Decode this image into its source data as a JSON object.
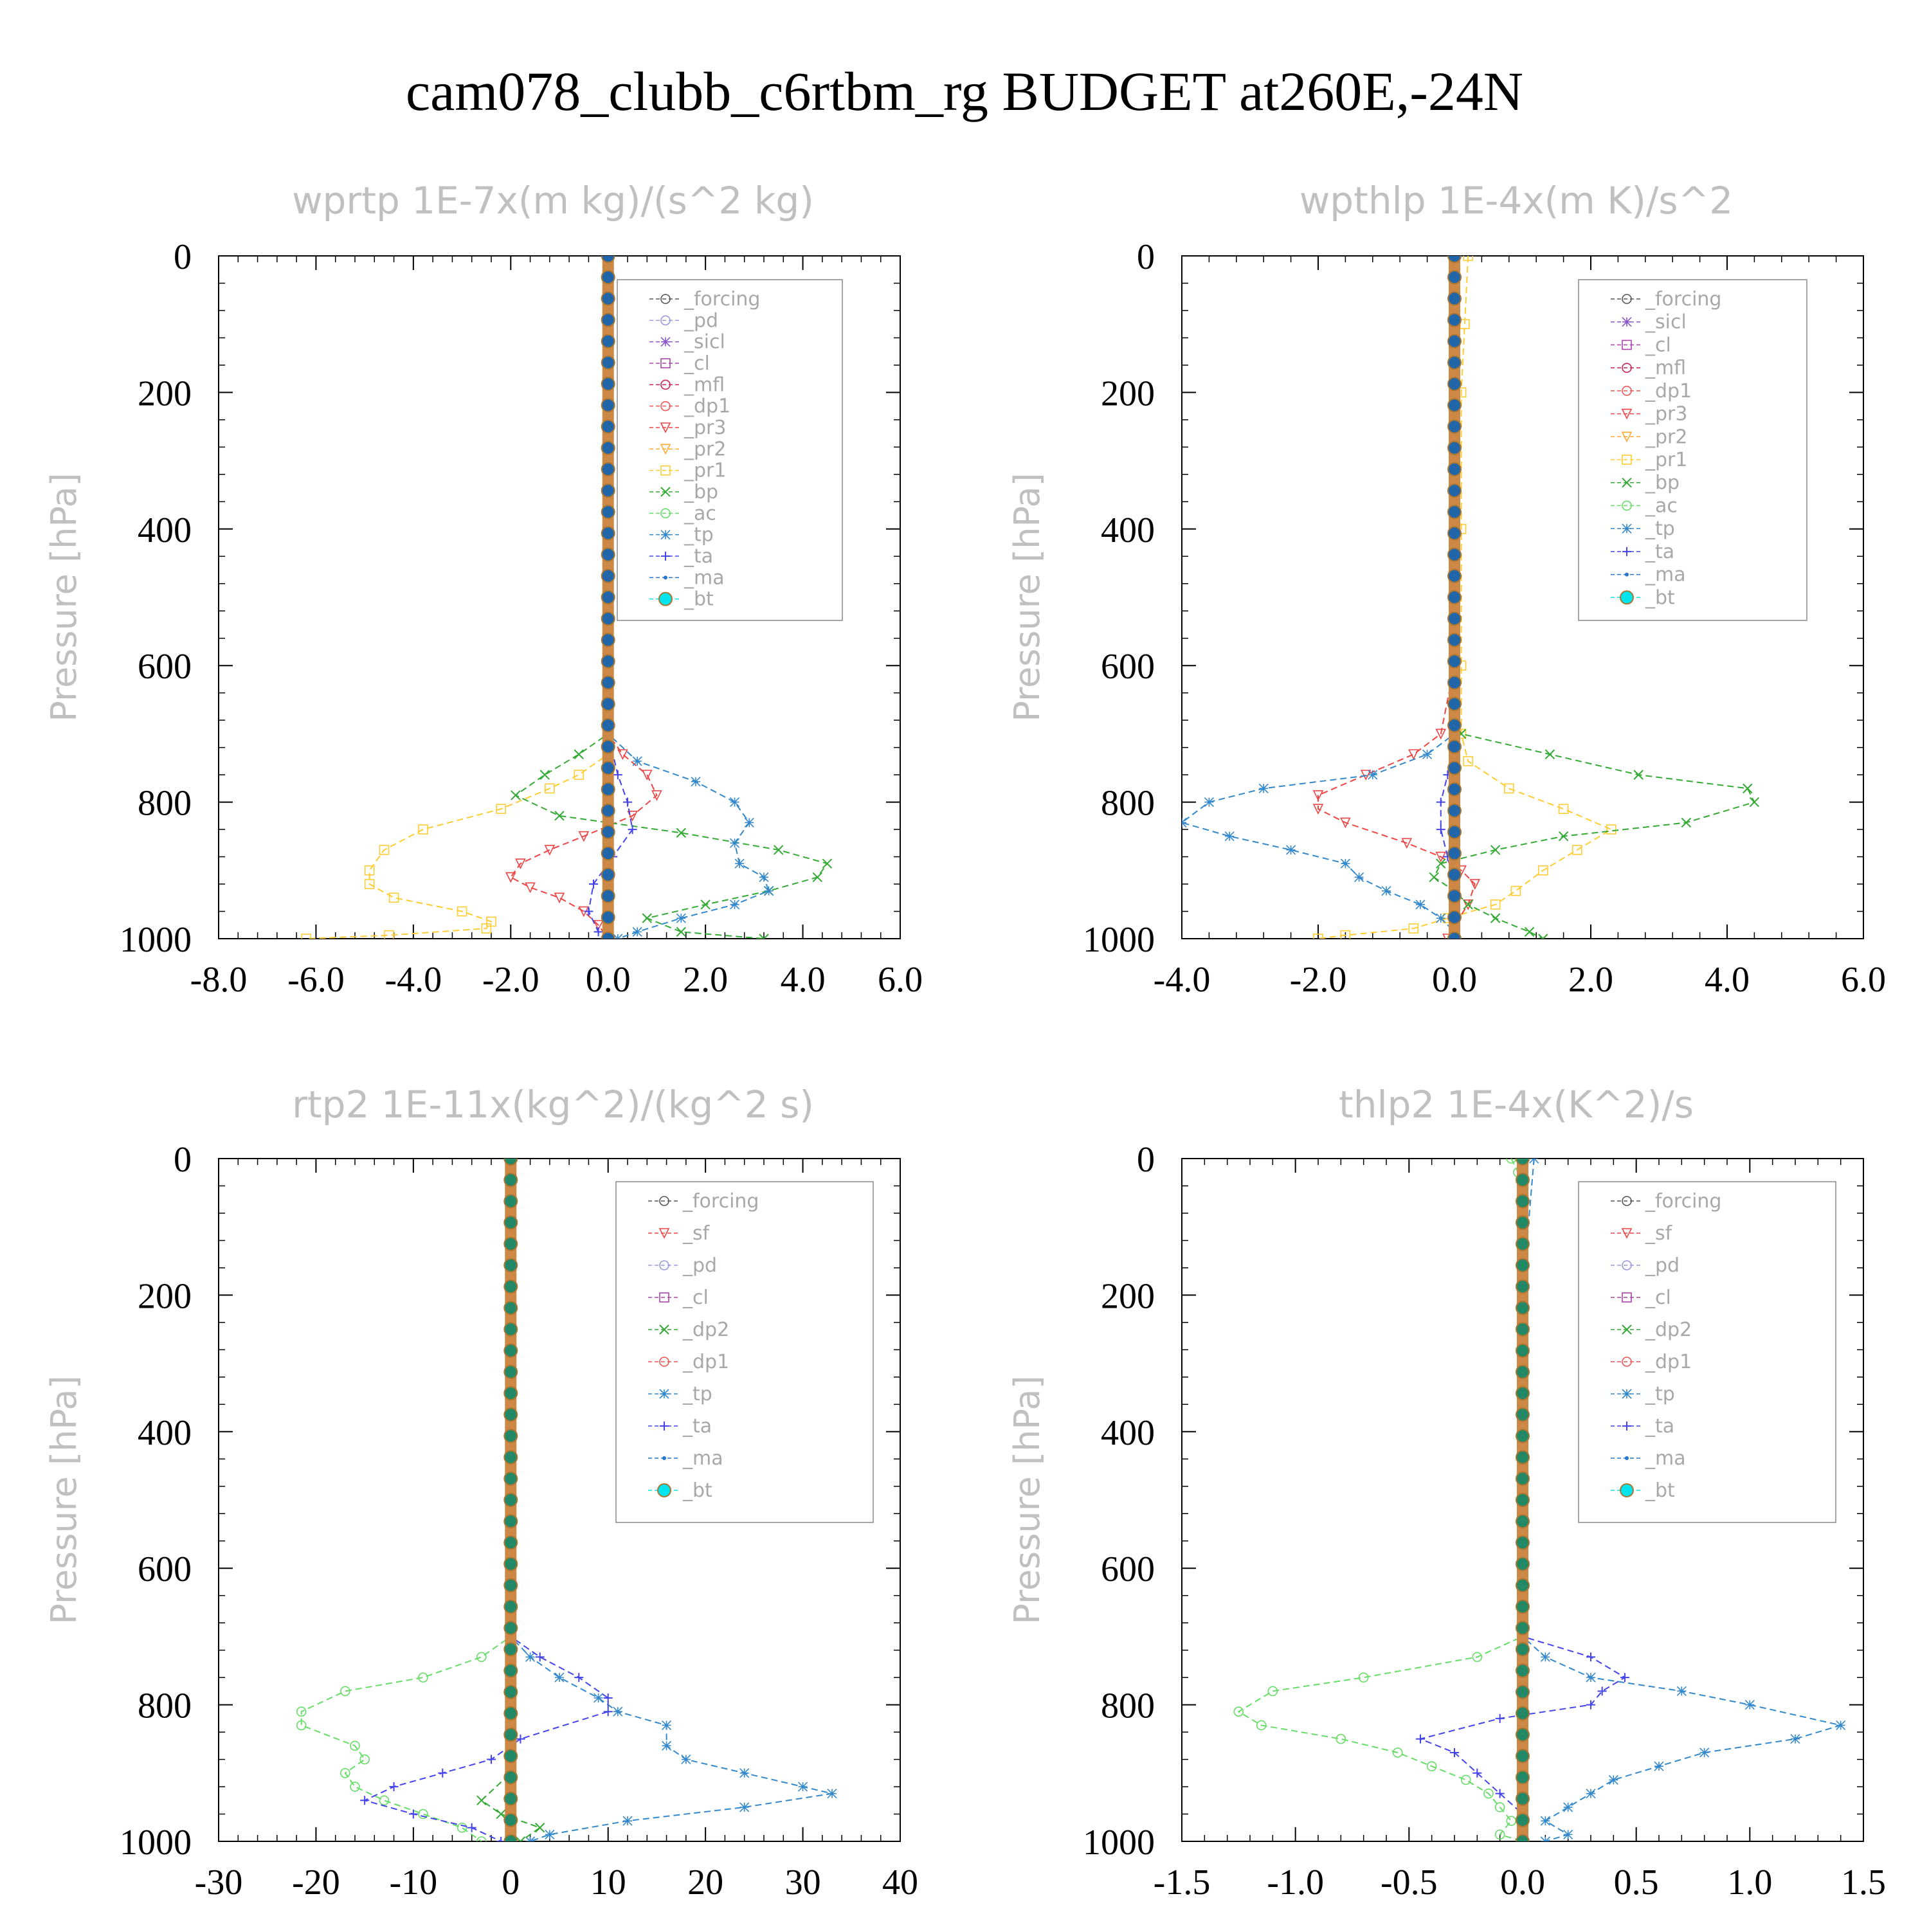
{
  "title": "cam078_clubb_c6rtbm_rg  BUDGET at260E,-24N",
  "chart_data": [
    {
      "type": "line",
      "title": "wprtp  1E-7x(m kg)/(s^2 kg)",
      "ylabel": "Pressure [hPa]",
      "xlim": [
        -8,
        6
      ],
      "ylim": [
        1000,
        0
      ],
      "xticks": [
        "-8.0",
        "-6.0",
        "-4.0",
        "-2.0",
        "0.0",
        "2.0",
        "4.0",
        "6.0"
      ],
      "yticks": [
        "0",
        "200",
        "400",
        "600",
        "800",
        "1000"
      ],
      "legend": [
        "_forcing",
        "_pd",
        "_sicl",
        "_cl",
        "_mfl",
        "_dp1",
        "_pr3",
        "_pr2",
        "_pr1",
        "_bp",
        "_ac",
        "_tp",
        "_ta",
        "_ma",
        "_bt"
      ],
      "series": [
        {
          "name": "_pr1",
          "color": "#ffcc33",
          "p": [
            0,
            200,
            400,
            600,
            700,
            730,
            760,
            780,
            810,
            840,
            870,
            900,
            920,
            940,
            960,
            975,
            985,
            995,
            1000
          ],
          "x": [
            0,
            0,
            0,
            0,
            0,
            0,
            -0.6,
            -1.2,
            -2.2,
            -3.8,
            -4.6,
            -4.9,
            -4.9,
            -4.4,
            -3.0,
            -2.4,
            -2.5,
            -4.5,
            -6.2
          ]
        },
        {
          "name": "_pr3",
          "color": "#ee4444",
          "p": [
            0,
            200,
            400,
            600,
            700,
            730,
            760,
            790,
            820,
            850,
            870,
            890,
            910,
            925,
            940,
            960,
            980,
            1000
          ],
          "x": [
            0,
            0,
            0,
            0,
            0,
            0.3,
            0.8,
            1.0,
            0.5,
            -0.5,
            -1.2,
            -1.8,
            -2.0,
            -1.6,
            -1.0,
            -0.5,
            -0.2,
            0
          ]
        },
        {
          "name": "_bp",
          "color": "#33aa33",
          "p": [
            0,
            200,
            400,
            600,
            700,
            730,
            760,
            790,
            820,
            845,
            870,
            890,
            910,
            930,
            950,
            970,
            990,
            1000
          ],
          "x": [
            0,
            0,
            0,
            0,
            0,
            -0.6,
            -1.3,
            -1.9,
            -1.0,
            1.5,
            3.5,
            4.5,
            4.3,
            3.3,
            2.0,
            0.8,
            1.5,
            3.2
          ]
        },
        {
          "name": "_tp",
          "color": "#3388cc",
          "p": [
            0,
            200,
            400,
            600,
            700,
            740,
            770,
            800,
            830,
            860,
            890,
            910,
            930,
            950,
            970,
            990,
            1000
          ],
          "x": [
            0,
            0,
            0,
            0,
            0,
            0.6,
            1.8,
            2.6,
            2.9,
            2.6,
            2.7,
            3.2,
            3.3,
            2.6,
            1.5,
            0.6,
            0.2
          ]
        },
        {
          "name": "_ta",
          "color": "#4444ee",
          "p": [
            0,
            200,
            400,
            600,
            700,
            760,
            800,
            840,
            880,
            920,
            960,
            990,
            1000
          ],
          "x": [
            0,
            0,
            0,
            0,
            0,
            0.2,
            0.4,
            0.5,
            0.1,
            -0.3,
            -0.4,
            -0.2,
            0
          ]
        },
        {
          "name": "_forcing",
          "color": "#444444",
          "p": [
            0,
            200,
            400,
            600,
            800,
            1000
          ],
          "x": [
            0,
            0,
            0,
            0,
            0,
            0
          ]
        },
        {
          "name": "_bt",
          "color": "#2266aa",
          "marker": "bt",
          "p": [
            0,
            200,
            400,
            600,
            800,
            1000
          ],
          "x": [
            0,
            0,
            0,
            0,
            0,
            0
          ]
        }
      ]
    },
    {
      "type": "line",
      "title": "wpthlp  1E-4x(m K)/s^2",
      "ylabel": "Pressure [hPa]",
      "xlim": [
        -4,
        6
      ],
      "ylim": [
        1000,
        0
      ],
      "xticks": [
        "-4.0",
        "-2.0",
        "0.0",
        "2.0",
        "4.0",
        "6.0"
      ],
      "yticks": [
        "0",
        "200",
        "400",
        "600",
        "800",
        "1000"
      ],
      "legend": [
        "_forcing",
        "_sicl",
        "_cl",
        "_mfl",
        "_dp1",
        "_pr3",
        "_pr2",
        "_pr1",
        "_bp",
        "_ac",
        "_tp",
        "_ta",
        "_ma",
        "_bt"
      ],
      "series": [
        {
          "name": "_pr1",
          "color": "#ffcc33",
          "p": [
            0,
            100,
            200,
            400,
            600,
            700,
            740,
            780,
            810,
            840,
            870,
            900,
            930,
            950,
            970,
            985,
            995,
            1000
          ],
          "x": [
            0.2,
            0.15,
            0.1,
            0.1,
            0.1,
            0.1,
            0.2,
            0.8,
            1.6,
            2.3,
            1.8,
            1.3,
            0.9,
            0.6,
            -0.1,
            -0.6,
            -1.6,
            -2.0
          ]
        },
        {
          "name": "_pr3",
          "color": "#ee4444",
          "p": [
            0,
            200,
            400,
            600,
            700,
            730,
            760,
            790,
            810,
            830,
            860,
            880,
            900,
            920,
            950,
            980,
            1000
          ],
          "x": [
            0,
            0,
            0,
            0,
            -0.2,
            -0.6,
            -1.3,
            -2.0,
            -2.0,
            -1.6,
            -0.7,
            -0.2,
            0.1,
            0.3,
            0.2,
            0.0,
            -0.1
          ]
        },
        {
          "name": "_bp",
          "color": "#33aa33",
          "p": [
            0,
            200,
            400,
            600,
            680,
            700,
            730,
            760,
            780,
            800,
            830,
            850,
            870,
            890,
            910,
            930,
            950,
            970,
            990,
            1000
          ],
          "x": [
            0,
            0,
            0,
            0,
            0,
            0.1,
            1.4,
            2.7,
            4.3,
            4.4,
            3.4,
            1.6,
            0.6,
            -0.2,
            -0.3,
            0.0,
            0.2,
            0.6,
            1.1,
            1.3
          ]
        },
        {
          "name": "_tp",
          "color": "#3388cc",
          "p": [
            0,
            200,
            400,
            600,
            700,
            730,
            760,
            780,
            800,
            830,
            850,
            870,
            890,
            910,
            930,
            950,
            970,
            990,
            1000
          ],
          "x": [
            0,
            0,
            0,
            0,
            0,
            -0.4,
            -1.2,
            -2.8,
            -3.6,
            -4.0,
            -3.3,
            -2.4,
            -1.6,
            -1.4,
            -1.0,
            -0.5,
            -0.2,
            0,
            0
          ]
        },
        {
          "name": "_ta",
          "color": "#4444ee",
          "p": [
            0,
            200,
            400,
            600,
            700,
            760,
            800,
            840,
            880,
            920,
            960,
            1000
          ],
          "x": [
            0,
            0,
            0,
            0,
            0,
            -0.1,
            -0.2,
            -0.2,
            -0.1,
            0,
            0,
            0
          ]
        },
        {
          "name": "_forcing",
          "color": "#aa44aa",
          "p": [
            0,
            200,
            400,
            600,
            800,
            1000
          ],
          "x": [
            0,
            0,
            0,
            0,
            0,
            0
          ]
        },
        {
          "name": "_bt",
          "color": "#2266aa",
          "marker": "bt",
          "p": [
            0,
            200,
            400,
            600,
            800,
            1000
          ],
          "x": [
            0,
            0,
            0,
            0,
            0,
            0
          ]
        }
      ]
    },
    {
      "type": "line",
      "title": "rtp2  1E-11x(kg^2)/(kg^2 s)",
      "ylabel": "Pressure [hPa]",
      "xlim": [
        -30,
        40
      ],
      "ylim": [
        1000,
        0
      ],
      "xticks": [
        "-30",
        "-20",
        "-10",
        "0",
        "10",
        "20",
        "30",
        "40"
      ],
      "yticks": [
        "0",
        "200",
        "400",
        "600",
        "800",
        "1000"
      ],
      "legend": [
        "_forcing",
        "_sf",
        "_pd",
        "_cl",
        "_dp2",
        "_dp1",
        "_tp",
        "_ta",
        "_ma",
        "_bt"
      ],
      "series": [
        {
          "name": "_dp1",
          "color": "#66dd66",
          "p": [
            0,
            200,
            400,
            600,
            700,
            730,
            760,
            780,
            810,
            830,
            860,
            880,
            900,
            920,
            940,
            960,
            980,
            1000
          ],
          "x": [
            0,
            0,
            0,
            0,
            0,
            -3,
            -9,
            -17,
            -21.5,
            -21.5,
            -16,
            -15,
            -17,
            -16,
            -13,
            -9,
            -5,
            -3
          ]
        },
        {
          "name": "_tp",
          "color": "#3388cc",
          "p": [
            0,
            200,
            400,
            600,
            700,
            730,
            760,
            790,
            810,
            830,
            860,
            880,
            900,
            920,
            930,
            950,
            970,
            990,
            1000
          ],
          "x": [
            0,
            0,
            0,
            0,
            0,
            2,
            5,
            9,
            11,
            16,
            16,
            18,
            24,
            30,
            33,
            24,
            12,
            4,
            2
          ]
        },
        {
          "name": "_ta",
          "color": "#4444ee",
          "p": [
            0,
            200,
            400,
            600,
            700,
            730,
            760,
            790,
            810,
            850,
            880,
            900,
            920,
            940,
            960,
            980,
            1000
          ],
          "x": [
            0,
            0,
            0,
            0,
            0,
            3,
            7,
            10,
            10,
            1,
            -2,
            -7,
            -12,
            -15,
            -10,
            -4,
            -1
          ]
        },
        {
          "name": "_dp2",
          "color": "#33aa33",
          "p": [
            0,
            200,
            400,
            600,
            900,
            940,
            960,
            980,
            1000
          ],
          "x": [
            0,
            0,
            0,
            0,
            0,
            -3,
            -1,
            3,
            1
          ]
        },
        {
          "name": "_forcing",
          "color": "#ee4444",
          "p": [
            0,
            200,
            400,
            600,
            800,
            1000
          ],
          "x": [
            0,
            0,
            0,
            0,
            0,
            0
          ]
        },
        {
          "name": "_bt",
          "color": "#228866",
          "marker": "bt",
          "p": [
            0,
            200,
            400,
            600,
            800,
            1000
          ],
          "x": [
            0,
            0,
            0,
            0,
            0,
            0
          ]
        }
      ]
    },
    {
      "type": "line",
      "title": "thlp2  1E-4x(K^2)/s",
      "ylabel": "Pressure [hPa]",
      "xlim": [
        -1.5,
        1.5
      ],
      "ylim": [
        1000,
        0
      ],
      "xticks": [
        "-1.5",
        "-1.0",
        "-0.5",
        "0.0",
        "0.5",
        "1.0",
        "1.5"
      ],
      "yticks": [
        "0",
        "200",
        "400",
        "600",
        "800",
        "1000"
      ],
      "legend": [
        "_forcing",
        "_sf",
        "_pd",
        "_cl",
        "_dp2",
        "_dp1",
        "_tp",
        "_ta",
        "_ma",
        "_bt"
      ],
      "series": [
        {
          "name": "_dp1",
          "color": "#66dd66",
          "p": [
            0,
            20,
            200,
            400,
            600,
            700,
            730,
            760,
            780,
            810,
            830,
            850,
            870,
            890,
            910,
            930,
            950,
            970,
            990,
            1000
          ],
          "x": [
            -0.05,
            -0.02,
            0,
            0,
            0,
            0,
            -0.2,
            -0.7,
            -1.1,
            -1.25,
            -1.15,
            -0.8,
            -0.55,
            -0.4,
            -0.25,
            -0.15,
            -0.1,
            -0.05,
            -0.1,
            0
          ]
        },
        {
          "name": "_tp",
          "color": "#3388cc",
          "p": [
            0,
            200,
            400,
            600,
            700,
            730,
            760,
            780,
            800,
            830,
            850,
            870,
            890,
            910,
            930,
            950,
            970,
            990,
            1000
          ],
          "x": [
            0.05,
            0,
            0,
            0,
            0,
            0.1,
            0.3,
            0.7,
            1.0,
            1.4,
            1.2,
            0.8,
            0.6,
            0.4,
            0.3,
            0.2,
            0.1,
            0.2,
            0.1
          ]
        },
        {
          "name": "_ta",
          "color": "#4444ee",
          "p": [
            0,
            200,
            400,
            600,
            700,
            730,
            760,
            780,
            800,
            820,
            850,
            870,
            900,
            930,
            960,
            990,
            1000
          ],
          "x": [
            0,
            0,
            0,
            0,
            0,
            0.3,
            0.45,
            0.35,
            0.3,
            -0.1,
            -0.45,
            -0.3,
            -0.2,
            -0.1,
            0,
            0,
            0
          ]
        },
        {
          "name": "_forcing",
          "color": "#ee4444",
          "p": [
            0,
            200,
            400,
            600,
            800,
            1000
          ],
          "x": [
            0,
            0,
            0,
            0,
            0,
            0
          ]
        },
        {
          "name": "_bt",
          "color": "#228866",
          "marker": "bt",
          "p": [
            0,
            200,
            400,
            600,
            800,
            1000
          ],
          "x": [
            0,
            0,
            0,
            0,
            0,
            0
          ]
        }
      ]
    }
  ]
}
